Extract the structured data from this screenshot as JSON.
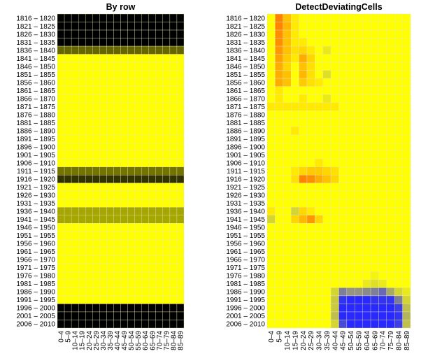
{
  "chart_data": [
    {
      "type": "heatmap",
      "title": "By row",
      "rows": [
        "1816 – 1820",
        "1821 – 1825",
        "1826 – 1830",
        "1831 – 1835",
        "1836 – 1840",
        "1841 – 1845",
        "1846 – 1850",
        "1851 – 1855",
        "1856 – 1860",
        "1861 – 1865",
        "1866 – 1870",
        "1871 – 1875",
        "1876 – 1880",
        "1881 – 1885",
        "1886 – 1890",
        "1891 – 1895",
        "1896 – 1900",
        "1901 – 1905",
        "1906 – 1910",
        "1911 – 1915",
        "1916 – 1920",
        "1921 – 1925",
        "1926 – 1930",
        "1931 – 1935",
        "1936 – 1940",
        "1941 – 1945",
        "1946 – 1950",
        "1951 – 1955",
        "1956 – 1960",
        "1961 – 1965",
        "1966 – 1970",
        "1971 – 1975",
        "1976 – 1980",
        "1981 – 1985",
        "1986 – 1990",
        "1991 – 1995",
        "1996 – 2000",
        "2001 – 2005",
        "2006 – 2010"
      ],
      "columns": [
        "0–4",
        "5–9",
        "10–14",
        "15–19",
        "20–24",
        "25–29",
        "30–34",
        "35–39",
        "40–44",
        "45–49",
        "50–54",
        "55–59",
        "60–64",
        "65–69",
        "70–74",
        "75–79",
        "80–84",
        "85–89"
      ],
      "row_shading": [
        1,
        1,
        1,
        1,
        0.6,
        0,
        0,
        0,
        0,
        0,
        0,
        0,
        0,
        0,
        0,
        0,
        0,
        0,
        0,
        0.55,
        0.8,
        0,
        0,
        0,
        0.35,
        0.35,
        0,
        0,
        0,
        0,
        0,
        0,
        0,
        0,
        0,
        0,
        1,
        1,
        1
      ],
      "shade_colors": {
        "normal": "#ffff00",
        "flagged": "#000000"
      }
    },
    {
      "type": "heatmap",
      "title": "DetectDeviatingCells",
      "rows": [
        "1816 – 1820",
        "1821 – 1825",
        "1826 – 1830",
        "1831 – 1835",
        "1836 – 1840",
        "1841 – 1845",
        "1846 – 1850",
        "1851 – 1855",
        "1856 – 1860",
        "1861 – 1865",
        "1866 – 1870",
        "1871 – 1875",
        "1876 – 1880",
        "1881 – 1885",
        "1886 – 1890",
        "1891 – 1895",
        "1896 – 1900",
        "1901 – 1905",
        "1906 – 1910",
        "1911 – 1915",
        "1916 – 1920",
        "1921 – 1925",
        "1926 – 1930",
        "1931 – 1935",
        "1936 – 1940",
        "1941 – 1945",
        "1946 – 1950",
        "1951 – 1955",
        "1956 – 1960",
        "1961 – 1965",
        "1966 – 1970",
        "1971 – 1975",
        "1976 – 1980",
        "1981 – 1985",
        "1986 – 1990",
        "1991 – 1995",
        "1996 – 2000",
        "2001 – 2005",
        "2006 – 2010"
      ],
      "columns": [
        "0–4",
        "5–9",
        "10–14",
        "15–19",
        "20–24",
        "25–29",
        "30–34",
        "35–39",
        "40–44",
        "45–49",
        "50–54",
        "55–59",
        "60–64",
        "65–69",
        "70–74",
        "75–79",
        "80–84",
        "85–89"
      ],
      "cells": [
        {
          "row": 0,
          "col": 1,
          "v": 0.6
        },
        {
          "row": 0,
          "col": 2,
          "v": 0.3
        },
        {
          "row": 0,
          "col": 3,
          "v": 0.1
        },
        {
          "row": 1,
          "col": 1,
          "v": 0.6
        },
        {
          "row": 1,
          "col": 2,
          "v": 0.35
        },
        {
          "row": 1,
          "col": 3,
          "v": 0.1
        },
        {
          "row": 2,
          "col": 1,
          "v": 0.55
        },
        {
          "row": 2,
          "col": 2,
          "v": 0.3
        },
        {
          "row": 2,
          "col": 3,
          "v": 0.1
        },
        {
          "row": 3,
          "col": 1,
          "v": 0.55
        },
        {
          "row": 3,
          "col": 2,
          "v": 0.3
        },
        {
          "row": 3,
          "col": 3,
          "v": 0.1
        },
        {
          "row": 3,
          "col": 4,
          "v": 0.1
        },
        {
          "row": 4,
          "col": 1,
          "v": 0.5
        },
        {
          "row": 4,
          "col": 2,
          "v": 0.3
        },
        {
          "row": 4,
          "col": 3,
          "v": 0.15
        },
        {
          "row": 4,
          "col": 4,
          "v": 0.2
        },
        {
          "row": 4,
          "col": 5,
          "v": 0.1
        },
        {
          "row": 4,
          "col": 7,
          "v": -0.1
        },
        {
          "row": 5,
          "col": 1,
          "v": 0.45
        },
        {
          "row": 5,
          "col": 2,
          "v": 0.25
        },
        {
          "row": 5,
          "col": 3,
          "v": 0.1
        },
        {
          "row": 5,
          "col": 4,
          "v": 0.4
        },
        {
          "row": 5,
          "col": 5,
          "v": 0.2
        },
        {
          "row": 6,
          "col": 1,
          "v": 0.4
        },
        {
          "row": 6,
          "col": 2,
          "v": 0.2
        },
        {
          "row": 6,
          "col": 4,
          "v": 0.3
        },
        {
          "row": 6,
          "col": 5,
          "v": 0.15
        },
        {
          "row": 7,
          "col": 1,
          "v": 0.4
        },
        {
          "row": 7,
          "col": 2,
          "v": 0.3
        },
        {
          "row": 7,
          "col": 4,
          "v": 0.35
        },
        {
          "row": 7,
          "col": 5,
          "v": 0.15
        },
        {
          "row": 7,
          "col": 7,
          "v": -0.15
        },
        {
          "row": 8,
          "col": 1,
          "v": 0.4
        },
        {
          "row": 8,
          "col": 2,
          "v": 0.3
        },
        {
          "row": 8,
          "col": 4,
          "v": 0.25
        },
        {
          "row": 8,
          "col": 5,
          "v": 0.15
        },
        {
          "row": 8,
          "col": 6,
          "v": 0.1
        },
        {
          "row": 9,
          "col": 1,
          "v": 0.1
        },
        {
          "row": 10,
          "col": 1,
          "v": 0.1
        },
        {
          "row": 10,
          "col": 4,
          "v": 0.1
        },
        {
          "row": 10,
          "col": 7,
          "v": -0.1
        },
        {
          "row": 11,
          "col": 0,
          "v": 0.1
        },
        {
          "row": 11,
          "col": 1,
          "v": 0.1
        },
        {
          "row": 11,
          "col": 2,
          "v": 0.1
        },
        {
          "row": 11,
          "col": 3,
          "v": 0.1
        },
        {
          "row": 11,
          "col": 4,
          "v": 0.1
        },
        {
          "row": 11,
          "col": 5,
          "v": 0.1
        },
        {
          "row": 11,
          "col": 6,
          "v": 0.1
        },
        {
          "row": 11,
          "col": 7,
          "v": 0.1
        },
        {
          "row": 11,
          "col": 8,
          "v": 0.1
        },
        {
          "row": 14,
          "col": 3,
          "v": 0.1
        },
        {
          "row": 18,
          "col": 6,
          "v": 0.1
        },
        {
          "row": 19,
          "col": 3,
          "v": 0.1
        },
        {
          "row": 19,
          "col": 4,
          "v": 0.2
        },
        {
          "row": 19,
          "col": 5,
          "v": 0.25
        },
        {
          "row": 19,
          "col": 6,
          "v": 0.25
        },
        {
          "row": 19,
          "col": 7,
          "v": 0.2
        },
        {
          "row": 19,
          "col": 8,
          "v": 0.15
        },
        {
          "row": 20,
          "col": 3,
          "v": 0.15
        },
        {
          "row": 20,
          "col": 4,
          "v": 0.6
        },
        {
          "row": 20,
          "col": 5,
          "v": 0.55
        },
        {
          "row": 20,
          "col": 6,
          "v": 0.4
        },
        {
          "row": 20,
          "col": 7,
          "v": 0.3
        },
        {
          "row": 20,
          "col": 8,
          "v": 0.2
        },
        {
          "row": 24,
          "col": 0,
          "v": 0.1
        },
        {
          "row": 24,
          "col": 3,
          "v": -0.2
        },
        {
          "row": 24,
          "col": 4,
          "v": 0.2
        },
        {
          "row": 24,
          "col": 5,
          "v": 0.1
        },
        {
          "row": 25,
          "col": 0,
          "v": -0.2
        },
        {
          "row": 25,
          "col": 3,
          "v": 0.2
        },
        {
          "row": 25,
          "col": 4,
          "v": 0.35
        },
        {
          "row": 25,
          "col": 5,
          "v": 0.5
        },
        {
          "row": 25,
          "col": 6,
          "v": 0.2
        },
        {
          "row": 32,
          "col": 13,
          "v": -0.05
        },
        {
          "row": 33,
          "col": 12,
          "v": -0.1
        },
        {
          "row": 33,
          "col": 13,
          "v": -0.15
        },
        {
          "row": 33,
          "col": 14,
          "v": -0.1
        },
        {
          "row": 34,
          "col": 8,
          "v": -0.2
        },
        {
          "row": 34,
          "col": 9,
          "v": -0.6
        },
        {
          "row": 34,
          "col": 10,
          "v": -0.5
        },
        {
          "row": 34,
          "col": 11,
          "v": -0.5
        },
        {
          "row": 34,
          "col": 12,
          "v": -0.55
        },
        {
          "row": 34,
          "col": 13,
          "v": -0.6
        },
        {
          "row": 34,
          "col": 14,
          "v": -0.7
        },
        {
          "row": 34,
          "col": 15,
          "v": -0.4
        },
        {
          "row": 34,
          "col": 16,
          "v": -0.2
        },
        {
          "row": 34,
          "col": 17,
          "v": -0.1
        },
        {
          "row": 35,
          "col": 8,
          "v": -0.25
        },
        {
          "row": 35,
          "col": 9,
          "v": -0.95
        },
        {
          "row": 35,
          "col": 10,
          "v": -1
        },
        {
          "row": 35,
          "col": 11,
          "v": -1
        },
        {
          "row": 35,
          "col": 12,
          "v": -1
        },
        {
          "row": 35,
          "col": 13,
          "v": -0.95
        },
        {
          "row": 35,
          "col": 14,
          "v": -0.95
        },
        {
          "row": 35,
          "col": 15,
          "v": -0.95
        },
        {
          "row": 35,
          "col": 16,
          "v": -0.6
        },
        {
          "row": 35,
          "col": 17,
          "v": -0.2
        },
        {
          "row": 36,
          "col": 8,
          "v": -0.25
        },
        {
          "row": 36,
          "col": 9,
          "v": -1
        },
        {
          "row": 36,
          "col": 10,
          "v": -1
        },
        {
          "row": 36,
          "col": 11,
          "v": -1
        },
        {
          "row": 36,
          "col": 12,
          "v": -1
        },
        {
          "row": 36,
          "col": 13,
          "v": -1
        },
        {
          "row": 36,
          "col": 14,
          "v": -1
        },
        {
          "row": 36,
          "col": 15,
          "v": -1
        },
        {
          "row": 36,
          "col": 16,
          "v": -0.9
        },
        {
          "row": 36,
          "col": 17,
          "v": -0.3
        },
        {
          "row": 37,
          "col": 8,
          "v": -0.3
        },
        {
          "row": 37,
          "col": 9,
          "v": -1
        },
        {
          "row": 37,
          "col": 10,
          "v": -1
        },
        {
          "row": 37,
          "col": 11,
          "v": -1
        },
        {
          "row": 37,
          "col": 12,
          "v": -1
        },
        {
          "row": 37,
          "col": 13,
          "v": -1
        },
        {
          "row": 37,
          "col": 14,
          "v": -1
        },
        {
          "row": 37,
          "col": 15,
          "v": -1
        },
        {
          "row": 37,
          "col": 16,
          "v": -0.95
        },
        {
          "row": 37,
          "col": 17,
          "v": -0.35
        },
        {
          "row": 38,
          "col": 8,
          "v": -0.2
        },
        {
          "row": 38,
          "col": 9,
          "v": -0.85
        },
        {
          "row": 38,
          "col": 10,
          "v": -1
        },
        {
          "row": 38,
          "col": 11,
          "v": -1
        },
        {
          "row": 38,
          "col": 12,
          "v": -1
        },
        {
          "row": 38,
          "col": 13,
          "v": -1
        },
        {
          "row": 38,
          "col": 14,
          "v": -1
        },
        {
          "row": 38,
          "col": 15,
          "v": -1
        },
        {
          "row": 38,
          "col": 16,
          "v": -0.9
        },
        {
          "row": 38,
          "col": 17,
          "v": -0.3
        }
      ],
      "color_scale": {
        "base": "#ffff00",
        "positive": "#ff3000",
        "negative": "#2828ff"
      }
    }
  ]
}
